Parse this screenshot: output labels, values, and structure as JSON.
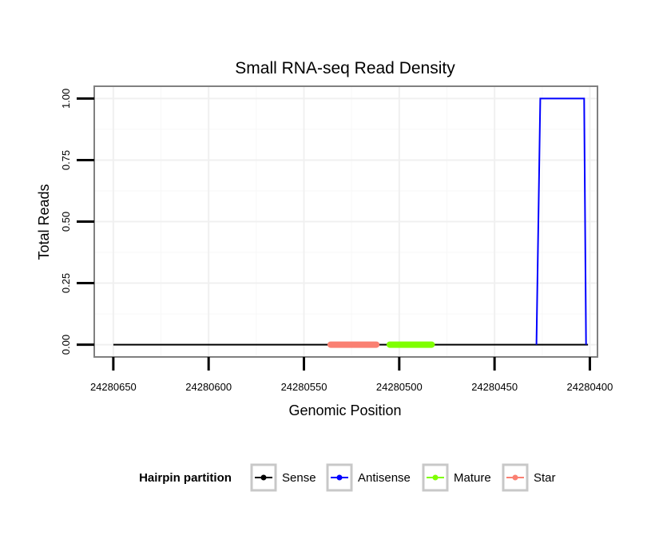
{
  "chart_data": {
    "type": "line",
    "title": "Small RNA-seq Read Density",
    "xlabel": "Genomic Position",
    "ylabel": "Total Reads",
    "x_reversed": true,
    "xlim": [
      24280660,
      24280396
    ],
    "ylim": [
      -0.05,
      1.05
    ],
    "x_ticks": [
      24280650,
      24280600,
      24280550,
      24280500,
      24280450,
      24280400
    ],
    "x_tick_labels": [
      "24280650",
      "24280600",
      "24280550",
      "24280500",
      "24280450",
      "24280400"
    ],
    "y_ticks": [
      0,
      0.25,
      0.5,
      0.75,
      1
    ],
    "y_tick_labels": [
      "0.00",
      "0.25",
      "0.50",
      "0.75",
      "1.00"
    ],
    "grid": true,
    "legend": {
      "title": "Hairpin partition",
      "position": "bottom",
      "entries": [
        "Sense",
        "Antisense",
        "Mature",
        "Star"
      ]
    },
    "series": [
      {
        "name": "Sense",
        "color": "#000000",
        "x": [
          24280650,
          24280401
        ],
        "y": [
          0,
          0
        ]
      },
      {
        "name": "Antisense",
        "color": "#0000ff",
        "x": [
          24280428,
          24280426,
          24280403,
          24280402
        ],
        "y": [
          0,
          1,
          1,
          0
        ]
      },
      {
        "name": "Mature",
        "color": "#7fff00",
        "x": [
          24280505,
          24280483
        ],
        "y": [
          0,
          0
        ]
      },
      {
        "name": "Star",
        "color": "#fa8072",
        "x": [
          24280536,
          24280512
        ],
        "y": [
          0,
          0
        ]
      }
    ]
  }
}
